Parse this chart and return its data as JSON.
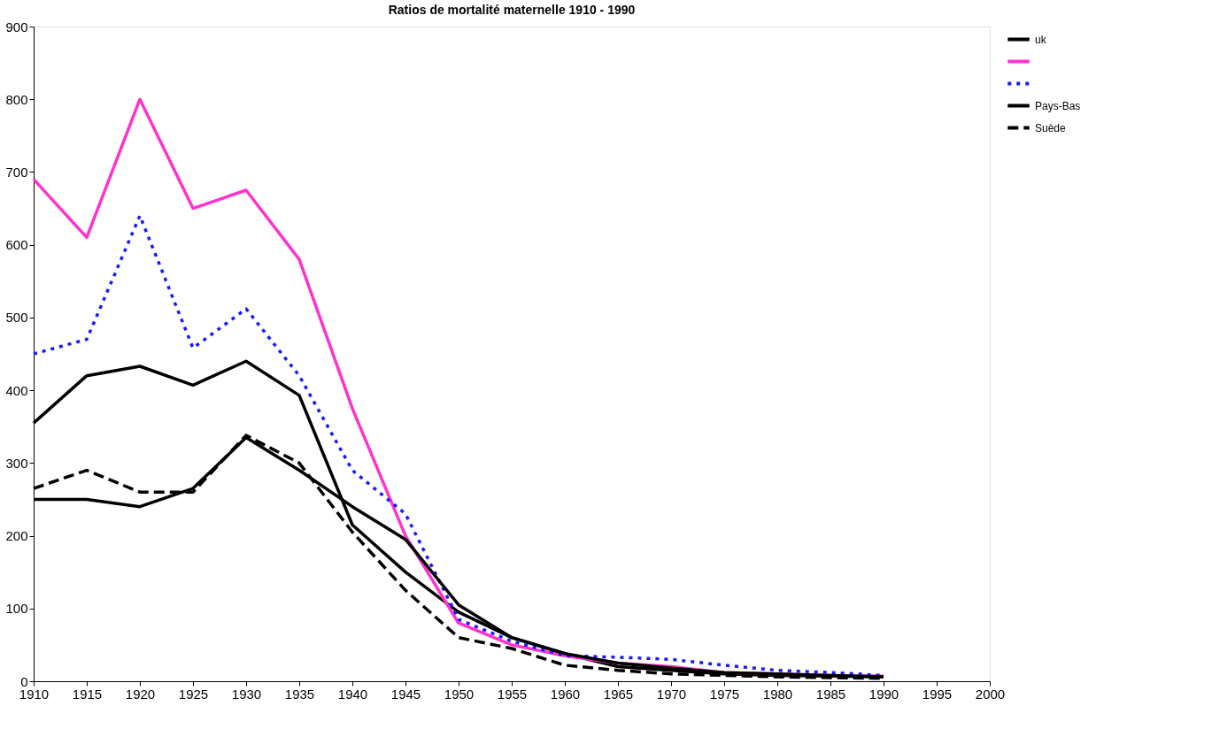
{
  "chart_data": {
    "type": "line",
    "title": "Ratios de mortalité maternelle 1910 - 1990",
    "x": [
      1910,
      1915,
      1920,
      1925,
      1930,
      1935,
      1940,
      1945,
      1950,
      1955,
      1960,
      1965,
      1970,
      1975,
      1980,
      1985,
      1990
    ],
    "xlim": [
      1910,
      2000
    ],
    "xticks": [
      1910,
      1915,
      1920,
      1925,
      1930,
      1935,
      1940,
      1945,
      1950,
      1955,
      1960,
      1965,
      1970,
      1975,
      1980,
      1985,
      1990,
      1995,
      2000
    ],
    "ylim": [
      0,
      900
    ],
    "yticks": [
      0,
      100,
      200,
      300,
      400,
      500,
      600,
      700,
      800,
      900
    ],
    "grid": false,
    "legend": "right",
    "marker": "none",
    "series": [
      {
        "name": "uk",
        "color": "#000000",
        "line_style": "solid",
        "values": [
          355,
          420,
          433,
          407,
          440,
          393,
          215,
          150,
          95,
          60,
          38,
          20,
          15,
          10,
          8,
          7,
          6
        ]
      },
      {
        "color": "#ff33cc",
        "line_style": "solid",
        "values": [
          690,
          610,
          800,
          650,
          675,
          580,
          375,
          200,
          80,
          50,
          35,
          25,
          20,
          12,
          10,
          8,
          7
        ]
      },
      {
        "color": "#1a1aff",
        "line_style": "dotted",
        "values": [
          450,
          470,
          640,
          458,
          512,
          420,
          290,
          230,
          85,
          55,
          35,
          33,
          30,
          22,
          15,
          12,
          8
        ]
      },
      {
        "name": "Pays-Bas",
        "color": "#000000",
        "line_style": "solid",
        "values": [
          250,
          250,
          240,
          265,
          335,
          290,
          240,
          195,
          105,
          60,
          38,
          25,
          18,
          12,
          10,
          8,
          6
        ]
      },
      {
        "name": "Suède",
        "color": "#000000",
        "line_style": "dashed",
        "values": [
          265,
          290,
          260,
          260,
          338,
          300,
          205,
          125,
          60,
          45,
          22,
          15,
          10,
          8,
          6,
          5,
          4
        ]
      }
    ]
  }
}
